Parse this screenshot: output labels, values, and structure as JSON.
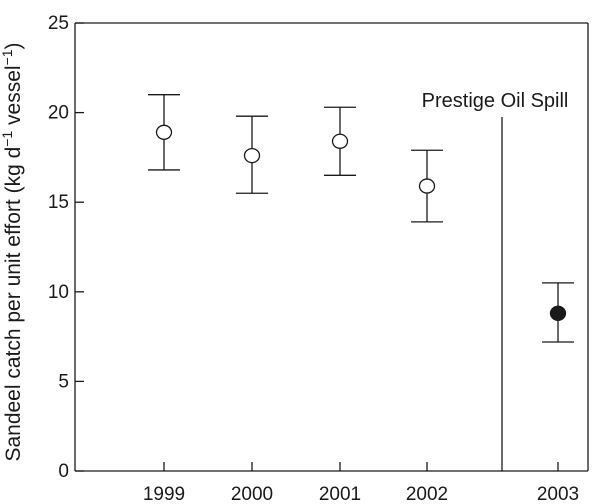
{
  "chart_data": {
    "type": "scatter",
    "ylabel_parts": [
      "Sandeel catch per unit effort (kg d",
      "−1",
      " vessel",
      "−1",
      ")"
    ],
    "xlabel": "",
    "ylim": [
      0,
      25
    ],
    "y_ticks": [
      0,
      5,
      10,
      15,
      20,
      25
    ],
    "categories": [
      "1999",
      "2000",
      "2001",
      "2002",
      "2003"
    ],
    "points": [
      {
        "x": "1999",
        "y": 18.9,
        "lower": 16.8,
        "upper": 21.0,
        "marker": "open"
      },
      {
        "x": "2000",
        "y": 17.6,
        "lower": 15.5,
        "upper": 19.8,
        "marker": "open"
      },
      {
        "x": "2001",
        "y": 18.4,
        "lower": 16.5,
        "upper": 20.3,
        "marker": "open"
      },
      {
        "x": "2002",
        "y": 15.9,
        "lower": 13.9,
        "upper": 17.9,
        "marker": "open"
      },
      {
        "x": "2003",
        "y": 8.8,
        "lower": 7.2,
        "upper": 10.5,
        "marker": "filled"
      }
    ],
    "annotation": {
      "text": "Prestige Oil Spill",
      "between": [
        "2002",
        "2003"
      ]
    },
    "grid": false,
    "legend": "none",
    "colors": {
      "ink": "#1a1a1a",
      "open_fill": "#ffffff",
      "filled_fill": "#1a1a1a"
    }
  }
}
